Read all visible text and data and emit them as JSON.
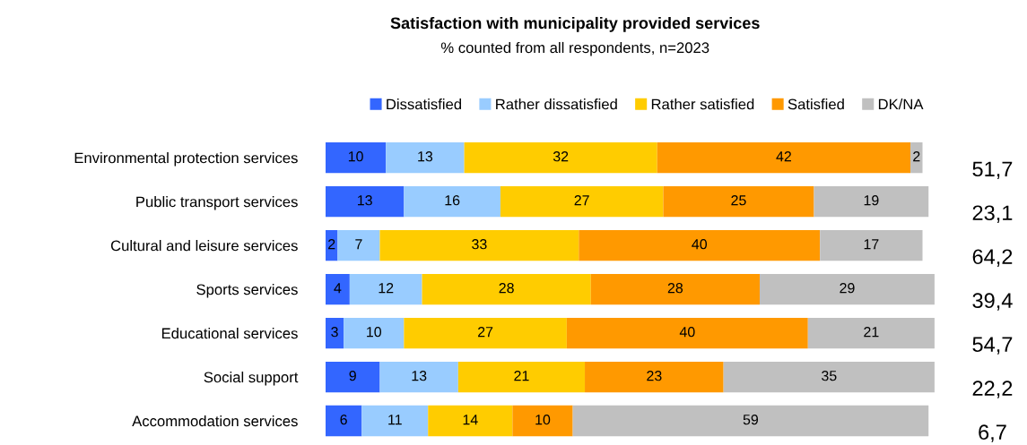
{
  "chart_data": {
    "type": "bar",
    "orientation": "horizontal",
    "stacked": true,
    "data_labels": true,
    "legend": "top",
    "grid": false,
    "title": "Satisfaction with municipality provided services",
    "subtitle": "% counted from all respondents, n=2023",
    "categories": [
      "Environmental protection services",
      "Public transport services",
      "Cultural and leisure services",
      "Sports services",
      "Educational services",
      "Social support",
      "Accommodation services"
    ],
    "series": [
      {
        "name": "Dissatisfied",
        "color": "#3366ff",
        "values": [
          10,
          13,
          2,
          4,
          3,
          9,
          6
        ]
      },
      {
        "name": "Rather dissatisfied",
        "color": "#99ccff",
        "values": [
          13,
          16,
          7,
          12,
          10,
          13,
          11
        ]
      },
      {
        "name": "Rather satisfied",
        "color": "#ffcc00",
        "values": [
          32,
          27,
          33,
          28,
          27,
          21,
          14
        ]
      },
      {
        "name": "Satisfied",
        "color": "#ff9900",
        "values": [
          42,
          25,
          40,
          28,
          40,
          23,
          10
        ]
      },
      {
        "name": "DK/NA",
        "color": "#c0c0c0",
        "values": [
          2,
          19,
          17,
          29,
          21,
          35,
          59
        ]
      }
    ],
    "annotations": [
      "51,7",
      "23,1",
      "64,2",
      "39,4",
      "54,7",
      "22,2",
      "6,7"
    ]
  }
}
